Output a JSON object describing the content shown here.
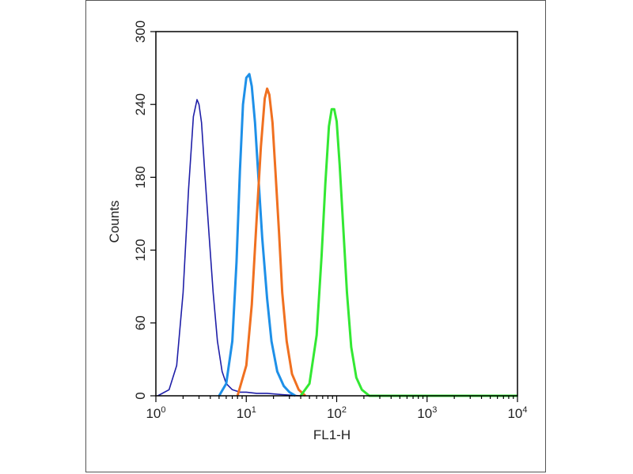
{
  "chart_data": {
    "type": "line",
    "title": "",
    "xlabel": "FL1-H",
    "ylabel": "Counts",
    "x_scale": "log",
    "xlim": [
      1,
      10000
    ],
    "ylim": [
      0,
      300
    ],
    "x_ticks": [
      {
        "value": 1,
        "base": "10",
        "exp": "0"
      },
      {
        "value": 10,
        "base": "10",
        "exp": "1"
      },
      {
        "value": 100,
        "base": "10",
        "exp": "2"
      },
      {
        "value": 1000,
        "base": "10",
        "exp": "3"
      },
      {
        "value": 10000,
        "base": "10",
        "exp": "4"
      }
    ],
    "y_ticks": [
      0,
      60,
      120,
      180,
      240,
      300
    ],
    "grid": false,
    "legend": "none",
    "series": [
      {
        "color": "#1f1fa8",
        "x": [
          1.05,
          1.4,
          1.7,
          2.0,
          2.3,
          2.6,
          2.85,
          3.0,
          3.2,
          3.5,
          3.9,
          4.3,
          4.8,
          5.4,
          6.0,
          7.0,
          8.5,
          10,
          13,
          17,
          25,
          40
        ],
        "y": [
          0,
          5,
          25,
          85,
          170,
          230,
          244,
          240,
          225,
          180,
          130,
          85,
          45,
          20,
          10,
          5,
          3,
          3,
          2,
          2,
          1,
          0
        ]
      },
      {
        "color": "#1e90e8",
        "x": [
          5.0,
          6.0,
          7.0,
          7.8,
          8.5,
          9.2,
          10.0,
          10.8,
          11.5,
          12.5,
          13.5,
          15,
          17,
          19,
          22,
          26,
          30,
          35
        ],
        "y": [
          0,
          10,
          45,
          110,
          185,
          240,
          262,
          265,
          255,
          225,
          185,
          130,
          80,
          45,
          20,
          8,
          3,
          0
        ]
      },
      {
        "color": "#f07020",
        "x": [
          8.0,
          10.0,
          11.5,
          13.0,
          14.5,
          16.0,
          17.0,
          18.0,
          19.5,
          21,
          23,
          25,
          28,
          32,
          38,
          45
        ],
        "y": [
          0,
          25,
          75,
          145,
          205,
          245,
          253,
          248,
          225,
          185,
          135,
          85,
          45,
          18,
          5,
          0
        ]
      },
      {
        "color": "#33e833",
        "x": [
          40,
          50,
          60,
          68,
          75,
          82,
          88,
          94,
          100,
          108,
          118,
          130,
          145,
          165,
          190,
          230,
          280,
          10000
        ],
        "y": [
          0,
          10,
          50,
          115,
          175,
          222,
          236,
          236,
          226,
          190,
          140,
          85,
          40,
          15,
          5,
          0,
          0,
          0
        ]
      }
    ]
  }
}
